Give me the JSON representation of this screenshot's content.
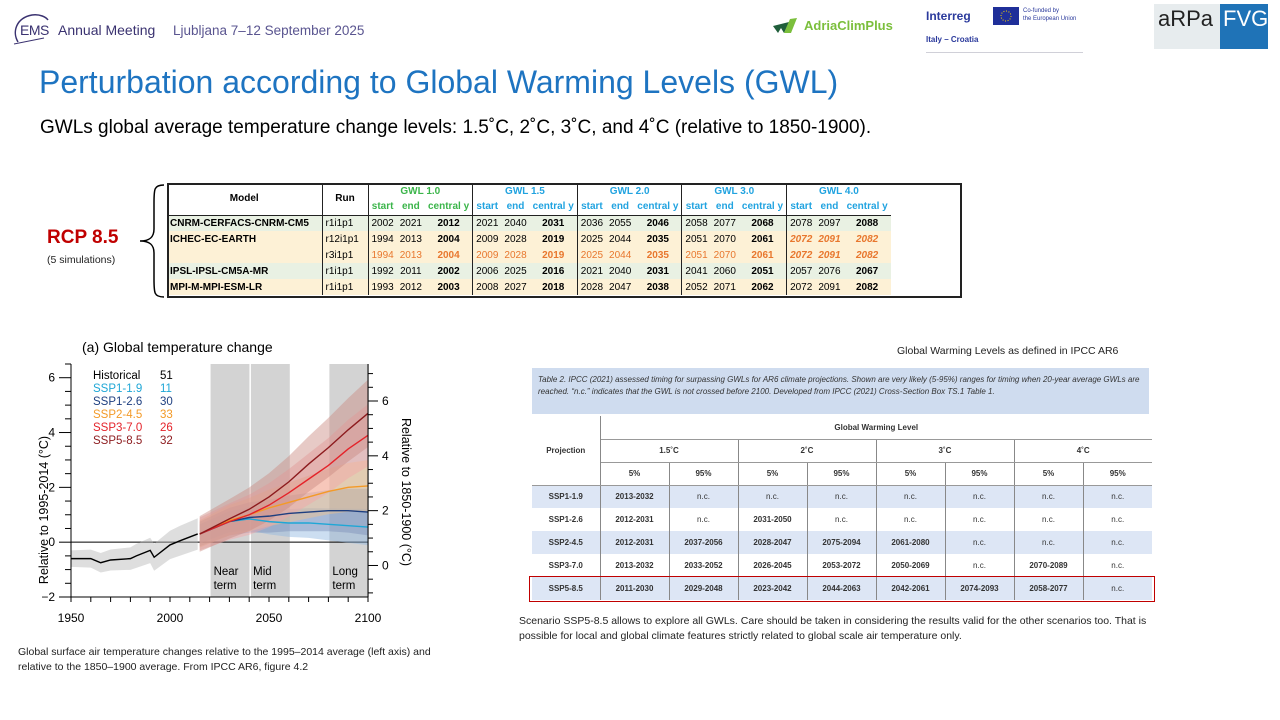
{
  "header": {
    "ems_logo": "EMS",
    "event": "Annual Meeting",
    "location_dates": "Ljubljana 7–12 September 2025",
    "adria_logo": "AdriaClimPlus",
    "interreg": "Interreg",
    "eu_text_1": "Co-funded by",
    "eu_text_2": "the European Union",
    "italy_croatia": "Italy – Croatia",
    "arpa": "aRPa",
    "fvg": "FVG"
  },
  "slide": {
    "title": "Perturbation according to Global Warming Levels (GWL)",
    "subtitle": "GWLs global average temperature change levels: 1.5˚C, 2˚C, 3˚C, and 4˚C (relative to 1850-1900)."
  },
  "rcp": {
    "label": "RCP 8.5",
    "sub": "(5 simulations)"
  },
  "regional_table": {
    "col_model": "Model",
    "col_run": "Run",
    "groups": [
      {
        "label": "GWL 1.0",
        "color": "#3bb54a"
      },
      {
        "label": "GWL 1.5",
        "color": "#21a3e0"
      },
      {
        "label": "GWL 2.0",
        "color": "#21a3e0"
      },
      {
        "label": "GWL 3.0",
        "color": "#21a3e0"
      },
      {
        "label": "GWL 4.0",
        "color": "#21a3e0"
      }
    ],
    "sub_start": "start",
    "sub_end": "end",
    "sub_central": "central y",
    "rows": [
      {
        "model": "CNRM-CERFACS-CNRM-CM5",
        "run": "r1i1p1",
        "vals": [
          "2002",
          "2021",
          "2012",
          "2021",
          "2040",
          "2031",
          "2036",
          "2055",
          "2046",
          "2058",
          "2077",
          "2068",
          "2078",
          "2097",
          "2088"
        ]
      },
      {
        "model": "ICHEC-EC-EARTH",
        "run": "r12i1p1",
        "vals": [
          "1994",
          "2013",
          "2004",
          "2009",
          "2028",
          "2019",
          "2025",
          "2044",
          "2035",
          "2051",
          "2070",
          "2061",
          "2072",
          "2091",
          "2082"
        ]
      },
      {
        "model": "",
        "run": "r3i1p1",
        "vals": [
          "1994",
          "2013",
          "2004",
          "2009",
          "2028",
          "2019",
          "2025",
          "2044",
          "2035",
          "2051",
          "2070",
          "2061",
          "2072",
          "2091",
          "2082"
        ]
      },
      {
        "model": "IPSL-IPSL-CM5A-MR",
        "run": "r1i1p1",
        "vals": [
          "1992",
          "2011",
          "2002",
          "2006",
          "2025",
          "2016",
          "2021",
          "2040",
          "2031",
          "2041",
          "2060",
          "2051",
          "2057",
          "2076",
          "2067"
        ]
      },
      {
        "model": "MPI-M-MPI-ESM-LR",
        "run": "r1i1p1",
        "vals": [
          "1993",
          "2012",
          "2003",
          "2008",
          "2027",
          "2018",
          "2028",
          "2047",
          "2038",
          "2052",
          "2071",
          "2062",
          "2072",
          "2091",
          "2082"
        ]
      }
    ]
  },
  "chart_data": {
    "type": "line",
    "title": "(a) Global temperature change",
    "ylabel": "Relative to 1995-2014 (°C)",
    "ylabel_right": "Relative to 1850-1900 (°C)",
    "xlim": [
      1950,
      2100
    ],
    "ylim": [
      -2,
      6.5
    ],
    "xticks": [
      "1950",
      "2000",
      "2050",
      "2100"
    ],
    "yticks_left": [
      "−2",
      "0",
      "2",
      "4",
      "6"
    ],
    "yticks_right": [
      "0",
      "2",
      "4",
      "6"
    ],
    "periods": [
      {
        "label_1": "Near",
        "label_2": "term",
        "start": 2021,
        "end": 2040
      },
      {
        "label_1": "Mid",
        "label_2": "term",
        "start": 2041,
        "end": 2060
      },
      {
        "label_1": "Long",
        "label_2": "term",
        "start": 2081,
        "end": 2100
      }
    ],
    "legend": [
      {
        "name": "Historical",
        "count": "51",
        "color": "#000000"
      },
      {
        "name": "SSP1-1.9",
        "count": "11",
        "color": "#1fa7d6"
      },
      {
        "name": "SSP1-2.6",
        "count": "30",
        "color": "#1e3f80"
      },
      {
        "name": "SSP2-4.5",
        "count": "33",
        "color": "#f39a27"
      },
      {
        "name": "SSP3-7.0",
        "count": "26",
        "color": "#e4232a"
      },
      {
        "name": "SSP5-8.5",
        "count": "32",
        "color": "#8c1b1e"
      }
    ],
    "series": [
      {
        "name": "Historical",
        "x": [
          1950,
          1960,
          1965,
          1970,
          1980,
          1983,
          1990,
          1992,
          2000,
          2005,
          2014
        ],
        "y": [
          -0.6,
          -0.6,
          -0.75,
          -0.65,
          -0.6,
          -0.5,
          -0.3,
          -0.55,
          -0.1,
          0.05,
          0.3
        ]
      },
      {
        "name": "SSP1-1.9",
        "x": [
          2015,
          2030,
          2040,
          2050,
          2060,
          2070,
          2080,
          2090,
          2100
        ],
        "y": [
          0.3,
          0.75,
          0.85,
          0.75,
          0.7,
          0.7,
          0.65,
          0.6,
          0.55
        ]
      },
      {
        "name": "SSP1-2.6",
        "x": [
          2015,
          2030,
          2040,
          2050,
          2060,
          2070,
          2080,
          2090,
          2100
        ],
        "y": [
          0.3,
          0.75,
          0.9,
          0.95,
          1.05,
          1.1,
          1.15,
          1.15,
          1.1
        ]
      },
      {
        "name": "SSP2-4.5",
        "x": [
          2015,
          2030,
          2040,
          2050,
          2060,
          2070,
          2080,
          2090,
          2100
        ],
        "y": [
          0.3,
          0.8,
          1.0,
          1.25,
          1.45,
          1.65,
          1.85,
          2.0,
          2.05
        ]
      },
      {
        "name": "SSP3-7.0",
        "x": [
          2015,
          2030,
          2040,
          2050,
          2060,
          2070,
          2080,
          2090,
          2100
        ],
        "y": [
          0.3,
          0.75,
          1.0,
          1.35,
          1.8,
          2.3,
          2.8,
          3.4,
          3.9
        ]
      },
      {
        "name": "SSP5-8.5",
        "x": [
          2015,
          2030,
          2040,
          2050,
          2060,
          2070,
          2080,
          2090,
          2100
        ],
        "y": [
          0.3,
          0.85,
          1.2,
          1.65,
          2.2,
          2.85,
          3.45,
          4.1,
          4.7
        ]
      }
    ]
  },
  "chart_caption": "Global surface air temperature changes relative to the 1995–2014 average (left axis) and relative to the 1850–1900 average. From IPCC AR6, figure 4.2",
  "ipcc": {
    "label": "Global Warming Levels as defined in IPCC AR6",
    "note": "Table 2. IPCC (2021) assessed timing for surpassing GWLs for AR6 climate projections. Shown are very likely (5-95%) ranges for timing when 20-year average GWLs are reached. “n.c.” indicates that the GWL is not crossed before 2100. Developed from IPCC (2021) Cross-Section Box TS.1 Table 1.",
    "col_projection": "Projection",
    "col_gwl": "Global Warming Level",
    "levels": [
      "1.5˚C",
      "2˚C",
      "3˚C",
      "4˚C"
    ],
    "p5": "5%",
    "p95": "95%",
    "rows": [
      {
        "name": "SSP1-1.9",
        "vals": [
          "2013-2032",
          "n.c.",
          "n.c.",
          "n.c.",
          "n.c.",
          "n.c.",
          "n.c.",
          "n.c."
        ]
      },
      {
        "name": "SSP1-2.6",
        "vals": [
          "2012-2031",
          "n.c.",
          "2031-2050",
          "n.c.",
          "n.c.",
          "n.c.",
          "n.c.",
          "n.c."
        ]
      },
      {
        "name": "SSP2-4.5",
        "vals": [
          "2012-2031",
          "2037-2056",
          "2028-2047",
          "2075-2094",
          "2061-2080",
          "n.c.",
          "n.c.",
          "n.c."
        ]
      },
      {
        "name": "SSP3-7.0",
        "vals": [
          "2013-2032",
          "2033-2052",
          "2026-2045",
          "2053-2072",
          "2050-2069",
          "n.c.",
          "2070-2089",
          "n.c."
        ]
      },
      {
        "name": "SSP5-8.5",
        "vals": [
          "2011-2030",
          "2029-2048",
          "2023-2042",
          "2044-2063",
          "2042-2061",
          "2074-2093",
          "2058-2077",
          "n.c."
        ]
      }
    ],
    "caption": "Scenario SSP5-8.5 allows to explore all GWLs. Care should be taken in considering the results valid for the other scenarios too. That is possible for local and global climate features strictly related to global scale air temperature only."
  }
}
